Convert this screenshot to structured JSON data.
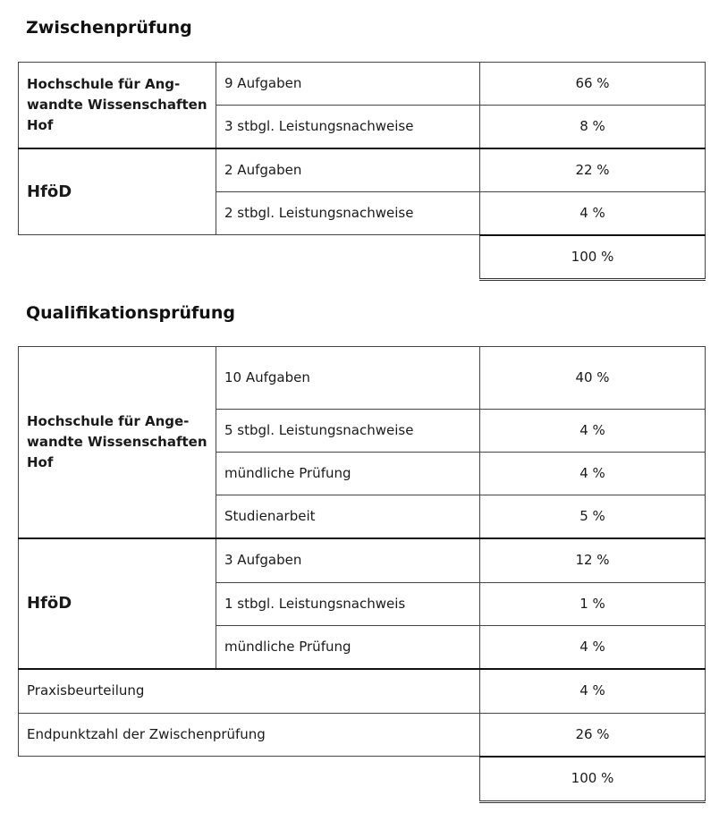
{
  "zp": {
    "title": "Zwischenprüfung",
    "hof": "Hochschule für Ang-wandte Wissenschaften Hof",
    "hfod": "HföD",
    "rows": [
      {
        "label": "9 Aufgaben",
        "value": "66 %"
      },
      {
        "label": "3 stbgl. Leistungsnachweise",
        "value": "8 %"
      },
      {
        "label": "2 Aufgaben",
        "value": "22 %"
      },
      {
        "label": "2 stbgl. Leistungsnachweise",
        "value": "4 %"
      }
    ],
    "total": "100 %"
  },
  "qp": {
    "title": "Qualifikationsprüfung",
    "hof": "Hochschule für Ange-wandte Wissenschaften Hof",
    "hfod": "HföD",
    "rows": [
      {
        "label": "10 Aufgaben",
        "value": "40 %"
      },
      {
        "label": "5 stbgl. Leistungsnachweise",
        "value": "4 %"
      },
      {
        "label": "mündliche Prüfung",
        "value": "4 %"
      },
      {
        "label": "Studienarbeit",
        "value": "5 %"
      },
      {
        "label": "3 Aufgaben",
        "value": "12 %"
      },
      {
        "label": "1 stbgl. Leistungsnachweis",
        "value": "1 %"
      },
      {
        "label": "mündliche Prüfung",
        "value": "4 %"
      }
    ],
    "praxis": {
      "label": "Praxisbeurteilung",
      "value": "4 %"
    },
    "endpunkt": {
      "label": "Endpunktzahl der Zwischenprüfung",
      "value": "26 %"
    },
    "total": "100 %"
  }
}
